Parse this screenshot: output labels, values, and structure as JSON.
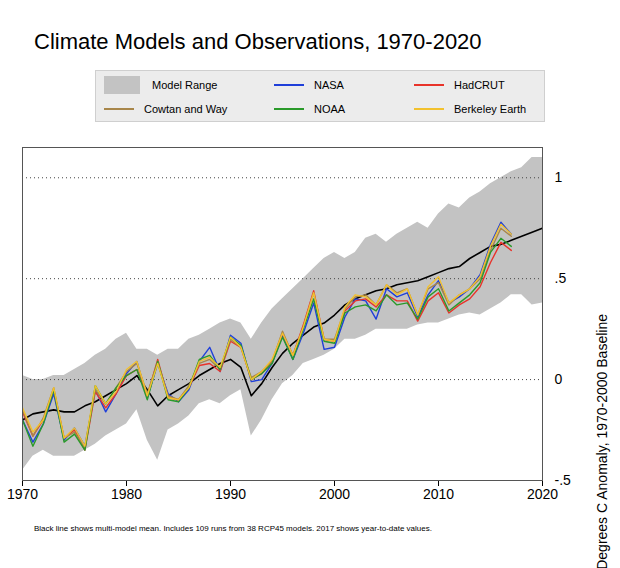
{
  "chart_data": {
    "type": "line",
    "title": "Climate Models and Observations, 1970-2020",
    "y_label": "Degrees C Anomaly, 1970-2000 Baseline",
    "caption": "Black line shows multi-model mean. Includes 109 runs from 38 RCP45 models. 2017 shows year-to-date values.",
    "x": [
      1970,
      1971,
      1972,
      1973,
      1974,
      1975,
      1976,
      1977,
      1978,
      1979,
      1980,
      1981,
      1982,
      1983,
      1984,
      1985,
      1986,
      1987,
      1988,
      1989,
      1990,
      1991,
      1992,
      1993,
      1994,
      1995,
      1996,
      1997,
      1998,
      1999,
      2000,
      2001,
      2002,
      2003,
      2004,
      2005,
      2006,
      2007,
      2008,
      2009,
      2010,
      2011,
      2012,
      2013,
      2014,
      2015,
      2016,
      2017,
      2018,
      2019,
      2020
    ],
    "xlim": [
      1970,
      2020
    ],
    "xticks": [
      1970,
      1980,
      1990,
      2000,
      2010,
      2020
    ],
    "ylim": [
      -0.5,
      1.15
    ],
    "yticks": [
      {
        "value": -0.5,
        "label": "-.5"
      },
      0,
      {
        "value": 0.5,
        "label": ".5"
      },
      1
    ],
    "grid": true,
    "legend": "top",
    "model_range": {
      "name": "Model Range",
      "color": "#c3c3c3",
      "type": "area",
      "lower": [
        -0.45,
        -0.38,
        -0.35,
        -0.38,
        -0.38,
        -0.38,
        -0.35,
        -0.32,
        -0.28,
        -0.25,
        -0.22,
        -0.15,
        -0.3,
        -0.4,
        -0.25,
        -0.22,
        -0.18,
        -0.12,
        -0.1,
        -0.12,
        -0.08,
        -0.05,
        -0.28,
        -0.2,
        -0.1,
        -0.02,
        0.02,
        0.08,
        0.1,
        0.12,
        0.15,
        0.2,
        0.2,
        0.22,
        0.25,
        0.25,
        0.25,
        0.25,
        0.27,
        0.28,
        0.28,
        0.3,
        0.32,
        0.33,
        0.32,
        0.35,
        0.38,
        0.42,
        0.42,
        0.37,
        0.38
      ],
      "upper": [
        0.02,
        0.0,
        0.0,
        0.02,
        0.02,
        0.05,
        0.08,
        0.12,
        0.15,
        0.2,
        0.23,
        0.15,
        0.15,
        0.12,
        0.15,
        0.15,
        0.2,
        0.22,
        0.25,
        0.28,
        0.3,
        0.28,
        0.2,
        0.28,
        0.35,
        0.4,
        0.45,
        0.5,
        0.55,
        0.6,
        0.63,
        0.6,
        0.63,
        0.7,
        0.72,
        0.68,
        0.72,
        0.75,
        0.78,
        0.75,
        0.82,
        0.87,
        0.85,
        0.9,
        0.93,
        0.97,
        1.0,
        1.03,
        1.05,
        1.1,
        1.1
      ]
    },
    "model_mean": {
      "color": "#000000",
      "values": [
        -0.2,
        -0.17,
        -0.16,
        -0.15,
        -0.16,
        -0.16,
        -0.13,
        -0.11,
        -0.08,
        -0.05,
        -0.02,
        0.02,
        -0.05,
        -0.13,
        -0.08,
        -0.05,
        -0.02,
        0.02,
        0.05,
        0.08,
        0.1,
        0.06,
        -0.08,
        -0.02,
        0.06,
        0.13,
        0.18,
        0.22,
        0.26,
        0.28,
        0.32,
        0.37,
        0.4,
        0.42,
        0.44,
        0.45,
        0.47,
        0.48,
        0.49,
        0.51,
        0.53,
        0.55,
        0.56,
        0.6,
        0.63,
        0.66,
        0.67,
        0.69,
        0.71,
        0.73,
        0.75
      ]
    },
    "series": [
      {
        "name": "NASA",
        "color": "#1f3fd9",
        "values": [
          -0.2,
          -0.31,
          -0.22,
          -0.07,
          -0.3,
          -0.24,
          -0.33,
          -0.05,
          -0.16,
          -0.07,
          0.03,
          0.09,
          -0.09,
          0.08,
          -0.07,
          -0.11,
          -0.05,
          0.09,
          0.16,
          0.04,
          0.22,
          0.18,
          -0.01,
          0.0,
          0.08,
          0.22,
          0.1,
          0.23,
          0.38,
          0.15,
          0.16,
          0.31,
          0.4,
          0.39,
          0.3,
          0.45,
          0.41,
          0.43,
          0.31,
          0.42,
          0.49,
          0.38,
          0.41,
          0.45,
          0.52,
          0.67,
          0.78,
          0.72,
          null,
          null,
          null
        ]
      },
      {
        "name": "HadCRUT",
        "color": "#e8332a",
        "values": [
          -0.16,
          -0.28,
          -0.2,
          -0.05,
          -0.29,
          -0.25,
          -0.35,
          -0.06,
          -0.14,
          -0.07,
          0.02,
          0.05,
          -0.08,
          0.1,
          -0.09,
          -0.1,
          -0.04,
          0.07,
          0.08,
          0.04,
          0.19,
          0.16,
          0.0,
          0.03,
          0.09,
          0.23,
          0.12,
          0.27,
          0.44,
          0.2,
          0.19,
          0.34,
          0.39,
          0.4,
          0.36,
          0.42,
          0.39,
          0.39,
          0.29,
          0.39,
          0.43,
          0.33,
          0.37,
          0.4,
          0.46,
          0.58,
          0.68,
          0.64,
          null,
          null,
          null
        ]
      },
      {
        "name": "Cowtan and Way",
        "color": "#a8864a",
        "values": [
          -0.15,
          -0.28,
          -0.19,
          -0.04,
          -0.29,
          -0.26,
          -0.34,
          -0.05,
          -0.12,
          -0.04,
          0.04,
          0.08,
          -0.07,
          0.09,
          -0.08,
          -0.1,
          -0.03,
          0.08,
          0.1,
          0.05,
          0.2,
          0.16,
          0.01,
          0.04,
          0.09,
          0.24,
          0.12,
          0.26,
          0.43,
          0.2,
          0.2,
          0.35,
          0.41,
          0.42,
          0.37,
          0.47,
          0.43,
          0.45,
          0.32,
          0.45,
          0.48,
          0.37,
          0.42,
          0.45,
          0.5,
          0.64,
          0.75,
          0.71,
          null,
          null,
          null
        ]
      },
      {
        "name": "NOAA",
        "color": "#2a9a2a",
        "values": [
          -0.2,
          -0.33,
          -0.22,
          -0.05,
          -0.31,
          -0.27,
          -0.35,
          -0.03,
          -0.12,
          -0.04,
          0.02,
          0.05,
          -0.1,
          0.09,
          -0.1,
          -0.11,
          -0.04,
          0.1,
          0.12,
          0.05,
          0.21,
          0.17,
          0.0,
          0.03,
          0.08,
          0.21,
          0.1,
          0.25,
          0.4,
          0.19,
          0.18,
          0.33,
          0.36,
          0.37,
          0.34,
          0.42,
          0.37,
          0.38,
          0.3,
          0.41,
          0.45,
          0.34,
          0.38,
          0.42,
          0.48,
          0.63,
          0.7,
          0.66,
          null,
          null,
          null
        ]
      },
      {
        "name": "Berkeley Earth",
        "color": "#f2c12e",
        "values": [
          -0.14,
          -0.26,
          -0.2,
          -0.04,
          -0.29,
          -0.24,
          -0.33,
          -0.03,
          -0.12,
          -0.06,
          0.05,
          0.09,
          -0.08,
          0.08,
          -0.09,
          -0.1,
          -0.04,
          0.09,
          0.11,
          0.06,
          0.21,
          0.16,
          0.0,
          0.04,
          0.1,
          0.23,
          0.12,
          0.26,
          0.43,
          0.2,
          0.19,
          0.36,
          0.42,
          0.41,
          0.37,
          0.47,
          0.42,
          0.45,
          0.32,
          0.46,
          0.51,
          0.38,
          0.42,
          0.45,
          0.51,
          0.66,
          0.77,
          0.72,
          null,
          null,
          null
        ]
      }
    ]
  }
}
